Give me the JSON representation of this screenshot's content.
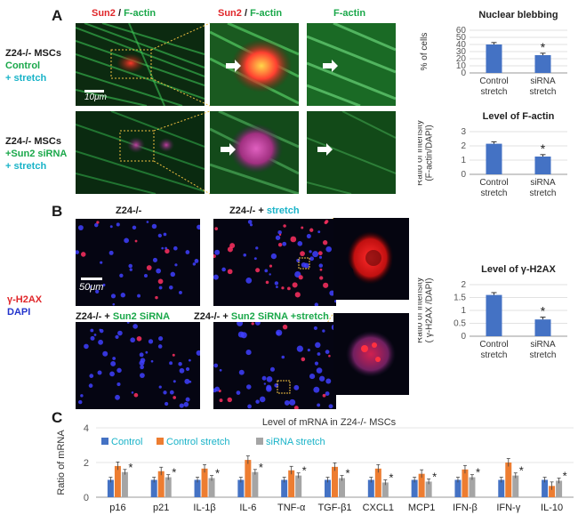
{
  "panelA": {
    "letter": "A",
    "col_headers": {
      "c1_sun2": "Sun2",
      "c1_sep": " / ",
      "c1_factin": "F-actin",
      "c2_sun2": "Sun2",
      "c2_sep": " / ",
      "c2_factin": "F-actin",
      "c3_factin": "F-actin"
    },
    "row1": {
      "l1": "Z24-/- MSCs",
      "l2": "Control",
      "l3": "+ stretch"
    },
    "row2": {
      "l1": "Z24-/- MSCs",
      "l2": "+Sun2 siRNA",
      "l3": "+ stretch"
    },
    "scale_bar": "10μm"
  },
  "panelB": {
    "letter": "B",
    "headers": {
      "h1": "Z24-/-",
      "h2_a": "Z24-/- + ",
      "h2_b": "stretch",
      "h3_a": "Z24-/- + ",
      "h3_b": "Sun2 SiRNA",
      "h4_a": "Z24-/- + ",
      "h4_b": "Sun2 SiRNA +stretch"
    },
    "side_label": {
      "l1": "γ-H2AX",
      "l2": "DAPI"
    },
    "scale_bar": "50μm"
  },
  "panelC": {
    "letter": "C"
  },
  "colors": {
    "bar_blue": "#4472c4",
    "bar_orange": "#ed7d31",
    "bar_gray": "#a5a5a5",
    "text_green": "#1aa84a",
    "text_cyan": "#19b3c8"
  },
  "chart_data": [
    {
      "type": "bar",
      "title": "Nuclear blebbing",
      "ylabel": "% of cells",
      "categories": [
        "Control\nstretch",
        "siRNA\nstretch"
      ],
      "values": [
        40,
        25
      ],
      "ylim": [
        0,
        60
      ],
      "yticks": [
        0,
        10,
        20,
        30,
        40,
        50,
        60
      ],
      "significance": [
        "",
        "*"
      ]
    },
    {
      "type": "bar",
      "title": "Level of F-actin",
      "ylabel": "Ratio of intensity\n(F-actin/DAPI)",
      "categories": [
        "Control\nstretch",
        "siRNA\nstretch"
      ],
      "values": [
        2.15,
        1.25
      ],
      "ylim": [
        0,
        3
      ],
      "yticks": [
        0,
        1,
        2,
        3
      ],
      "significance": [
        "",
        "*"
      ]
    },
    {
      "type": "bar",
      "title": "Level of γ-H2AX",
      "ylabel": "Ratio of intensity\n( γ-H2AX /DAPI)",
      "categories": [
        "Control\nstretch",
        "siRNA\nstretch"
      ],
      "values": [
        1.6,
        0.65
      ],
      "ylim": [
        0,
        2
      ],
      "yticks": [
        0,
        0.5,
        1,
        1.5,
        2
      ],
      "significance": [
        "",
        "*"
      ]
    },
    {
      "type": "bar",
      "title": "Level of mRNA in Z24-/- MSCs",
      "ylabel": "Ratio of mRNA",
      "ylim": [
        0,
        4
      ],
      "yticks": [
        0,
        2,
        4
      ],
      "legend": "top",
      "categories": [
        "p16",
        "p21",
        "IL-1β",
        "IL-6",
        "TNF-α",
        "TGF-β1",
        "CXCL1",
        "MCP1",
        "IFN-β",
        "IFN-γ",
        "IL-10"
      ],
      "series": [
        {
          "name": "Control",
          "color": "#4472c4",
          "values": [
            1,
            1,
            1,
            1,
            1,
            1,
            1,
            1,
            1,
            1,
            1
          ]
        },
        {
          "name": "Control stretch",
          "color": "#ed7d31",
          "values": [
            1.8,
            1.5,
            1.65,
            2.15,
            1.55,
            1.75,
            1.65,
            1.35,
            1.6,
            2.0,
            0.65
          ]
        },
        {
          "name": "siRNA stretch",
          "color": "#a5a5a5",
          "values": [
            1.45,
            1.15,
            1.1,
            1.45,
            1.25,
            1.1,
            0.85,
            0.9,
            1.15,
            1.25,
            0.95
          ]
        }
      ],
      "significance": [
        "*",
        "*",
        "*",
        "*",
        "*",
        "*",
        "*",
        "*",
        "*",
        "*",
        "*"
      ]
    }
  ]
}
